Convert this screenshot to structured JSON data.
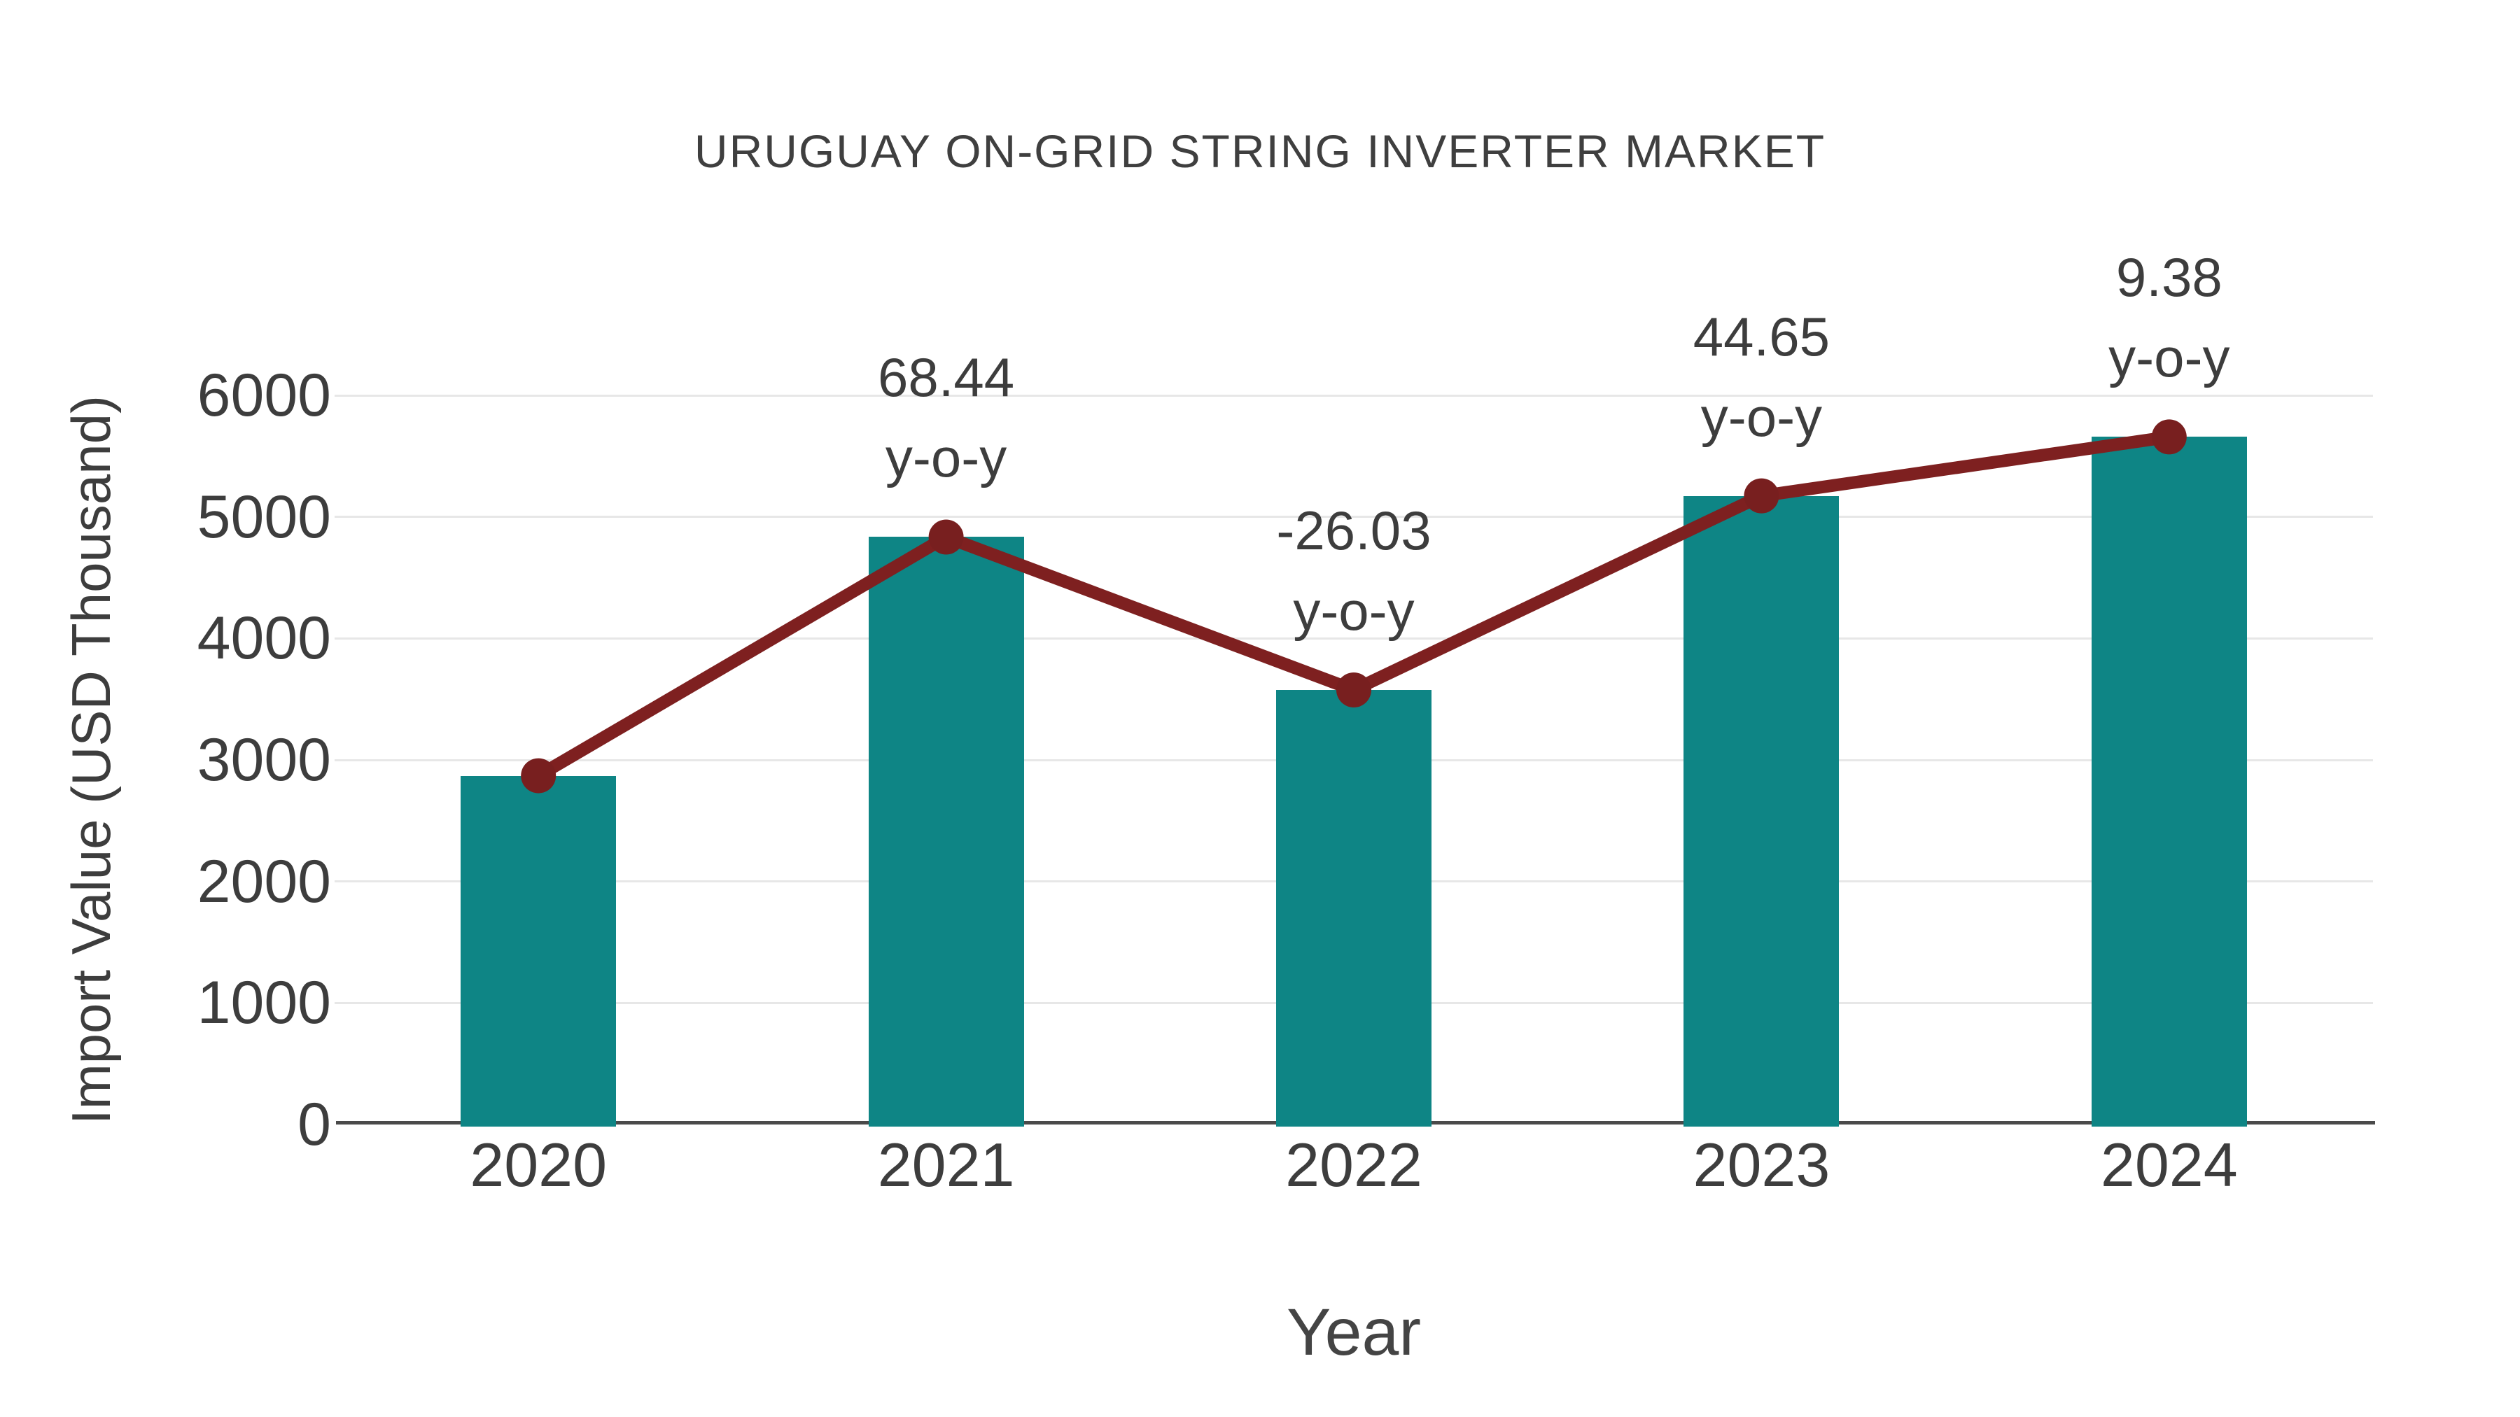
{
  "title": "URUGUAY ON-GRID STRING INVERTER MARKET",
  "chart_data": {
    "type": "bar",
    "title": "URUGUAY ON-GRID STRING INVERTER MARKET",
    "xlabel": "Year",
    "ylabel": "Import Value (USD Thousand)",
    "categories": [
      "2020",
      "2021",
      "2022",
      "2023",
      "2024"
    ],
    "series": [
      {
        "name": "Import Value (USD Thousand)",
        "type": "bar",
        "values": [
          2870,
          4834,
          3576,
          5173,
          5658
        ]
      },
      {
        "name": "y-o-y trend line",
        "type": "line",
        "values": [
          2870,
          4834,
          3576,
          5173,
          5658
        ]
      }
    ],
    "point_labels": [
      "",
      "68.44",
      "-26.03",
      "44.65",
      "9.38"
    ],
    "point_sublabel": "y-o-y",
    "yticks": [
      0,
      1000,
      2000,
      3000,
      4000,
      5000,
      6000
    ],
    "ylim": [
      0,
      6000
    ],
    "grid": "horizontal",
    "legend": "none",
    "colors": {
      "bar": "#0e8585",
      "line": "#7e2020",
      "marker": "#781f1f",
      "gridline": "#e7e7e7",
      "axis_line": "#4a4a4a",
      "text": "#3d3d3d",
      "title_text": "#3f3f3f"
    }
  }
}
